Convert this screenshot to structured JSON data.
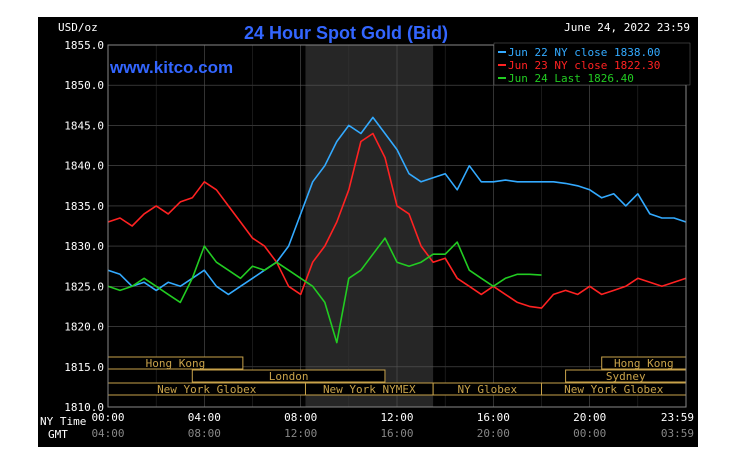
{
  "chart_data": {
    "type": "line",
    "title": "24 Hour Spot Gold (Bid)",
    "watermark": "www.kitco.com",
    "y_unit": "USD/oz",
    "timestamp": "June 24, 2022 23:59",
    "ylim": [
      1810,
      1855
    ],
    "xlim": [
      0,
      24
    ],
    "y_ticks": [
      "1855.0",
      "1850.0",
      "1845.0",
      "1840.0",
      "1835.0",
      "1830.0",
      "1825.0",
      "1820.0",
      "1815.0",
      "1810.0"
    ],
    "x_ticks_ny": [
      "00:00",
      "04:00",
      "08:00",
      "12:00",
      "16:00",
      "20:00",
      "23:59"
    ],
    "x_ticks_gmt": [
      "04:00",
      "08:00",
      "12:00",
      "16:00",
      "20:00",
      "00:00",
      "03:59"
    ],
    "x_row_label_ny": "NY Time",
    "x_row_label_gmt": "GMT",
    "grid": true,
    "legend_placement": "top-right",
    "colors": {
      "background": "#000000",
      "grid": "#555555",
      "axis_text": "#ffffff",
      "title": "#3366ff",
      "watermark": "#3366ff",
      "session_box": "#c8a24a",
      "nymex_shade": "#262626"
    },
    "legend": [
      {
        "label": "Jun 22 NY close 1838.00",
        "color": "#33aaff"
      },
      {
        "label": "Jun 23 NY close 1822.30",
        "color": "#ff2222"
      },
      {
        "label": "Jun 24 Last 1826.40",
        "color": "#22cc22"
      }
    ],
    "sessions": [
      {
        "label": "Hong Kong",
        "start": 0,
        "end": 5.6,
        "row": 0
      },
      {
        "label": "Hong Kong",
        "start": 20.5,
        "end": 24,
        "row": 0
      },
      {
        "label": "London",
        "start": 3.5,
        "end": 11.5,
        "row": 1
      },
      {
        "label": "Sydney",
        "start": 19,
        "end": 24,
        "row": 1
      },
      {
        "label": "New York Globex",
        "start": 0,
        "end": 8.2,
        "row": 2
      },
      {
        "label": "New York NYMEX",
        "start": 8.2,
        "end": 13.5,
        "row": 2
      },
      {
        "label": "NY Globex",
        "start": 13.5,
        "end": 18,
        "row": 2
      },
      {
        "label": "New York Globex",
        "start": 18,
        "end": 24,
        "row": 2
      }
    ],
    "nymex_shade": [
      8.2,
      13.5
    ],
    "series": [
      {
        "name": "Jun 22 NY close 1838.00",
        "color": "#33aaff",
        "x": [
          0,
          0.5,
          1,
          1.5,
          2,
          2.5,
          3,
          3.5,
          4,
          4.5,
          5,
          5.5,
          6,
          6.5,
          7,
          7.5,
          8,
          8.5,
          9,
          9.5,
          10,
          10.5,
          11,
          11.5,
          12,
          12.5,
          13,
          13.5,
          14,
          14.5,
          15,
          15.5,
          16,
          16.5,
          17,
          17.5,
          18,
          18.5,
          19,
          19.5,
          20,
          20.5,
          21,
          21.5,
          22,
          22.5,
          23,
          23.5,
          24
        ],
        "values": [
          1827,
          1826.5,
          1825,
          1825.5,
          1824.5,
          1825.5,
          1825,
          1826,
          1827,
          1825,
          1824,
          1825,
          1826,
          1827,
          1828,
          1830,
          1834,
          1838,
          1840,
          1843,
          1845,
          1844,
          1846,
          1844,
          1842,
          1839,
          1838,
          1838.5,
          1839,
          1837,
          1840,
          1838,
          1838,
          1838.2,
          1838,
          1838,
          1838,
          1838,
          1837.8,
          1837.5,
          1837,
          1836,
          1836.5,
          1835,
          1836.5,
          1834,
          1833.5,
          1833.5,
          1833
        ]
      },
      {
        "name": "Jun 23 NY close 1822.30",
        "color": "#ff2222",
        "x": [
          0,
          0.5,
          1,
          1.5,
          2,
          2.5,
          3,
          3.5,
          4,
          4.5,
          5,
          5.5,
          6,
          6.5,
          7,
          7.5,
          8,
          8.5,
          9,
          9.5,
          10,
          10.5,
          11,
          11.5,
          12,
          12.5,
          13,
          13.5,
          14,
          14.5,
          15,
          15.5,
          16,
          16.5,
          17,
          17.5,
          18,
          18.5,
          19,
          19.5,
          20,
          20.5,
          21,
          21.5,
          22,
          22.5,
          23,
          23.5,
          24
        ],
        "values": [
          1833,
          1833.5,
          1832.5,
          1834,
          1835,
          1834,
          1835.5,
          1836,
          1838,
          1837,
          1835,
          1833,
          1831,
          1830,
          1828,
          1825,
          1824,
          1828,
          1830,
          1833,
          1837,
          1843,
          1844,
          1841,
          1835,
          1834,
          1830,
          1828,
          1828.5,
          1826,
          1825,
          1824,
          1825,
          1824,
          1823,
          1822.5,
          1822.3,
          1824,
          1824.5,
          1824,
          1825,
          1824,
          1824.5,
          1825,
          1826,
          1825.5,
          1825,
          1825.5,
          1826
        ]
      },
      {
        "name": "Jun 24 Last 1826.40",
        "color": "#22cc22",
        "x": [
          0,
          0.5,
          1,
          1.5,
          2,
          2.5,
          3,
          3.5,
          4,
          4.5,
          5,
          5.5,
          6,
          6.5,
          7,
          7.5,
          8,
          8.5,
          9,
          9.5,
          10,
          10.5,
          11,
          11.5,
          12,
          12.5,
          13,
          13.5,
          14,
          14.5,
          15,
          15.5,
          16,
          16.5,
          17,
          17.5,
          18
        ],
        "values": [
          1825,
          1824.5,
          1825,
          1826,
          1825,
          1824,
          1823,
          1826,
          1830,
          1828,
          1827,
          1826,
          1827.5,
          1827,
          1828,
          1827,
          1826,
          1825,
          1823,
          1818,
          1826,
          1827,
          1829,
          1831,
          1828,
          1827.5,
          1828,
          1829,
          1829,
          1830.5,
          1827,
          1826,
          1825,
          1826,
          1826.5,
          1826.5,
          1826.4
        ]
      }
    ]
  }
}
